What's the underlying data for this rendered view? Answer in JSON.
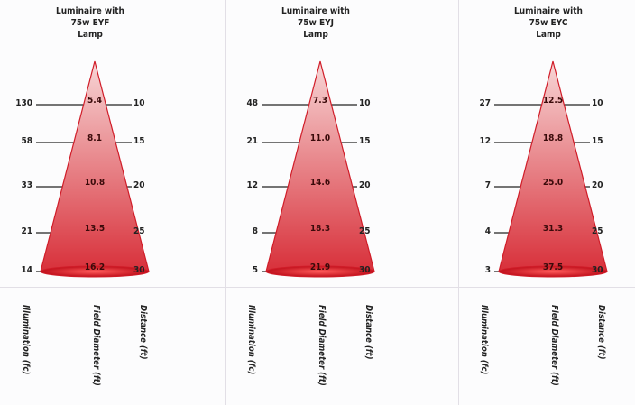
{
  "panels": [
    {
      "title_lines": [
        "Luminaire with",
        "75w EYF",
        "Lamp"
      ],
      "illuminance": [
        "130",
        "58",
        "33",
        "21",
        "14"
      ],
      "field_diameter": [
        "5.4",
        "8.1",
        "10.8",
        "13.5",
        "16.2"
      ],
      "distance": [
        "10",
        "15",
        "20",
        "25",
        "30"
      ]
    },
    {
      "title_lines": [
        "Luminaire with",
        "75w EYJ",
        "Lamp"
      ],
      "illuminance": [
        "48",
        "21",
        "12",
        "8",
        "5"
      ],
      "field_diameter": [
        "7.3",
        "11.0",
        "14.6",
        "18.3",
        "21.9"
      ],
      "distance": [
        "10",
        "15",
        "20",
        "25",
        "30"
      ]
    },
    {
      "title_lines": [
        "Luminaire with",
        "75w EYC",
        "Lamp"
      ],
      "illuminance": [
        "27",
        "12",
        "7",
        "4",
        "3"
      ],
      "field_diameter": [
        "12.5",
        "18.8",
        "25.0",
        "31.3",
        "37.5"
      ],
      "distance": [
        "10",
        "15",
        "20",
        "25",
        "30"
      ]
    }
  ],
  "axis_labels": {
    "illuminance": "Illumination (fc)",
    "field_diameter": "Field Diameter (ft)",
    "distance": "Distance (ft)"
  },
  "colors": {
    "cone_tip": "#f7d6d6",
    "cone_base": "#d8303a",
    "cone_stroke": "#d01c28",
    "text": "#222222"
  }
}
